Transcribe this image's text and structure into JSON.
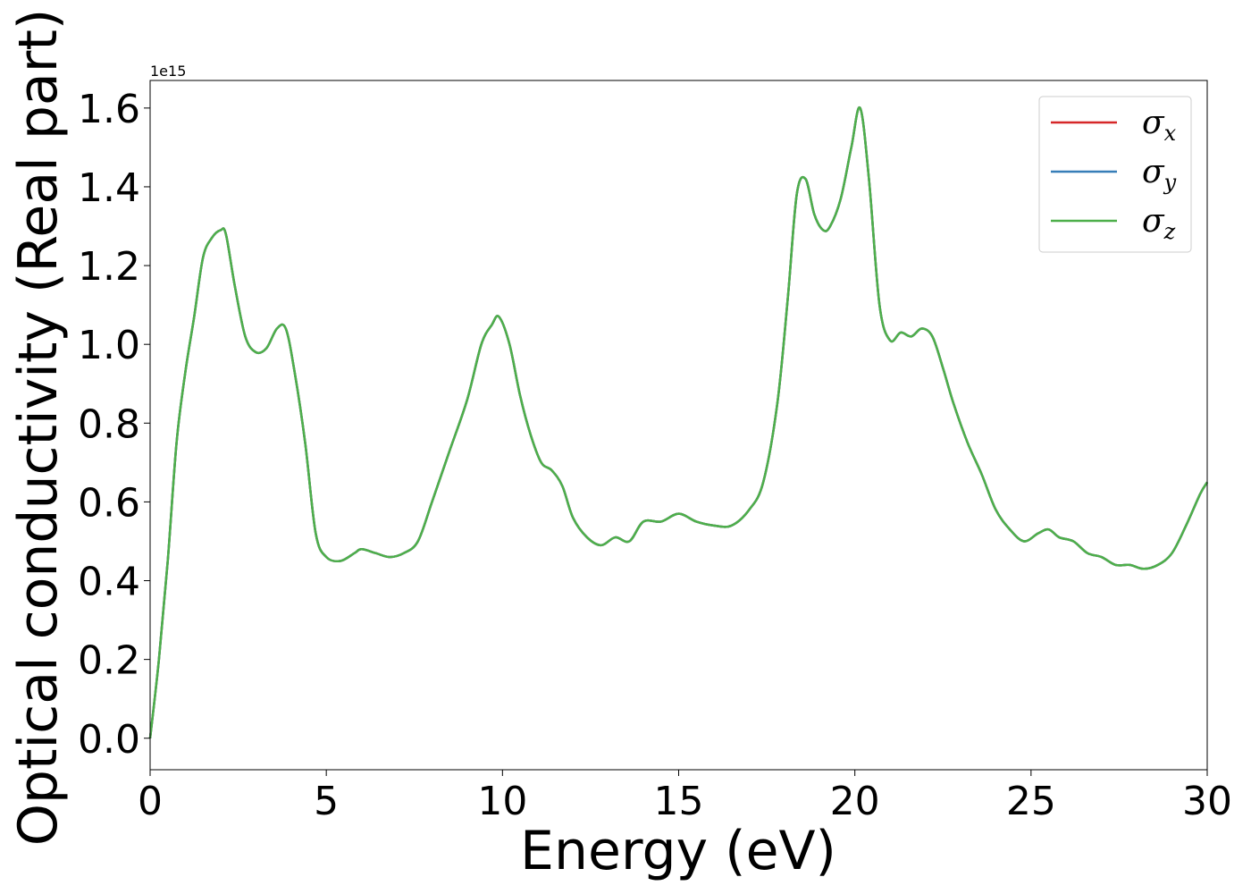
{
  "chart_data": {
    "type": "line",
    "xlabel": "Energy (eV)",
    "ylabel": "Optical conductivity (Real part)",
    "y_offset_text": "1e15",
    "xlim": [
      0,
      30
    ],
    "ylim": [
      -0.08,
      1.67
    ],
    "y_scale_factor": 1000000000000000.0,
    "xticks": [
      0,
      5,
      10,
      15,
      20,
      25,
      30
    ],
    "xtick_labels": [
      "0",
      "5",
      "10",
      "15",
      "20",
      "25",
      "30"
    ],
    "yticks": [
      0.0,
      0.2,
      0.4,
      0.6,
      0.8,
      1.0,
      1.2,
      1.4,
      1.6
    ],
    "ytick_labels": [
      "0.0",
      "0.2",
      "0.4",
      "0.6",
      "0.8",
      "1.0",
      "1.2",
      "1.4",
      "1.6"
    ],
    "grid": false,
    "legend_position": "top-right",
    "x": [
      0,
      0.25,
      0.5,
      0.75,
      1.0,
      1.25,
      1.5,
      1.75,
      2.0,
      2.15,
      2.4,
      2.7,
      3.0,
      3.3,
      3.6,
      3.85,
      4.1,
      4.4,
      4.7,
      5.0,
      5.4,
      5.8,
      6.0,
      6.4,
      6.8,
      7.2,
      7.6,
      8.0,
      8.5,
      9.0,
      9.4,
      9.7,
      9.9,
      10.2,
      10.5,
      10.8,
      11.1,
      11.4,
      11.7,
      12.0,
      12.4,
      12.8,
      13.2,
      13.6,
      14.0,
      14.5,
      15.0,
      15.5,
      16.0,
      16.5,
      17.0,
      17.4,
      17.8,
      18.1,
      18.35,
      18.6,
      18.85,
      19.1,
      19.3,
      19.6,
      19.9,
      20.15,
      20.4,
      20.7,
      21.0,
      21.3,
      21.6,
      21.9,
      22.2,
      22.5,
      22.8,
      23.2,
      23.6,
      24.0,
      24.4,
      24.8,
      25.2,
      25.5,
      25.8,
      26.2,
      26.6,
      27.0,
      27.4,
      27.8,
      28.2,
      28.6,
      29.0,
      29.4,
      29.8,
      30.0
    ],
    "series": [
      {
        "name": "σx",
        "name_symbol": "σ",
        "name_subscript": "x",
        "color": "#d62728",
        "values": [
          0.0,
          0.2,
          0.45,
          0.75,
          0.93,
          1.07,
          1.22,
          1.27,
          1.29,
          1.28,
          1.15,
          1.02,
          0.98,
          0.99,
          1.04,
          1.04,
          0.93,
          0.75,
          0.52,
          0.46,
          0.45,
          0.47,
          0.48,
          0.47,
          0.46,
          0.47,
          0.5,
          0.6,
          0.73,
          0.86,
          1.0,
          1.05,
          1.07,
          1.0,
          0.87,
          0.77,
          0.7,
          0.68,
          0.64,
          0.56,
          0.51,
          0.49,
          0.51,
          0.5,
          0.55,
          0.55,
          0.57,
          0.55,
          0.54,
          0.54,
          0.58,
          0.65,
          0.85,
          1.12,
          1.38,
          1.42,
          1.33,
          1.29,
          1.3,
          1.37,
          1.5,
          1.6,
          1.42,
          1.1,
          1.01,
          1.03,
          1.02,
          1.04,
          1.02,
          0.94,
          0.85,
          0.75,
          0.67,
          0.58,
          0.53,
          0.5,
          0.52,
          0.53,
          0.51,
          0.5,
          0.47,
          0.46,
          0.44,
          0.44,
          0.43,
          0.44,
          0.47,
          0.54,
          0.62,
          0.65
        ]
      },
      {
        "name": "σy",
        "name_symbol": "σ",
        "name_subscript": "y",
        "color": "#377eb8",
        "values": [
          0.0,
          0.2,
          0.45,
          0.75,
          0.93,
          1.07,
          1.22,
          1.27,
          1.29,
          1.28,
          1.15,
          1.02,
          0.98,
          0.99,
          1.04,
          1.04,
          0.93,
          0.75,
          0.52,
          0.46,
          0.45,
          0.47,
          0.48,
          0.47,
          0.46,
          0.47,
          0.5,
          0.6,
          0.73,
          0.86,
          1.0,
          1.05,
          1.07,
          1.0,
          0.87,
          0.77,
          0.7,
          0.68,
          0.64,
          0.56,
          0.51,
          0.49,
          0.51,
          0.5,
          0.55,
          0.55,
          0.57,
          0.55,
          0.54,
          0.54,
          0.58,
          0.65,
          0.85,
          1.12,
          1.38,
          1.42,
          1.33,
          1.29,
          1.3,
          1.37,
          1.5,
          1.6,
          1.42,
          1.1,
          1.01,
          1.03,
          1.02,
          1.04,
          1.02,
          0.94,
          0.85,
          0.75,
          0.67,
          0.58,
          0.53,
          0.5,
          0.52,
          0.53,
          0.51,
          0.5,
          0.47,
          0.46,
          0.44,
          0.44,
          0.43,
          0.44,
          0.47,
          0.54,
          0.62,
          0.65
        ]
      },
      {
        "name": "σz",
        "name_symbol": "σ",
        "name_subscript": "z",
        "color": "#4daf4a",
        "values": [
          0.0,
          0.2,
          0.45,
          0.75,
          0.93,
          1.07,
          1.22,
          1.27,
          1.29,
          1.28,
          1.15,
          1.02,
          0.98,
          0.99,
          1.04,
          1.04,
          0.93,
          0.75,
          0.52,
          0.46,
          0.45,
          0.47,
          0.48,
          0.47,
          0.46,
          0.47,
          0.5,
          0.6,
          0.73,
          0.86,
          1.0,
          1.05,
          1.07,
          1.0,
          0.87,
          0.77,
          0.7,
          0.68,
          0.64,
          0.56,
          0.51,
          0.49,
          0.51,
          0.5,
          0.55,
          0.55,
          0.57,
          0.55,
          0.54,
          0.54,
          0.58,
          0.65,
          0.85,
          1.12,
          1.38,
          1.42,
          1.33,
          1.29,
          1.3,
          1.37,
          1.5,
          1.6,
          1.42,
          1.1,
          1.01,
          1.03,
          1.02,
          1.04,
          1.02,
          0.94,
          0.85,
          0.75,
          0.67,
          0.58,
          0.53,
          0.5,
          0.52,
          0.53,
          0.51,
          0.5,
          0.47,
          0.46,
          0.44,
          0.44,
          0.43,
          0.44,
          0.47,
          0.54,
          0.62,
          0.65
        ]
      }
    ]
  }
}
